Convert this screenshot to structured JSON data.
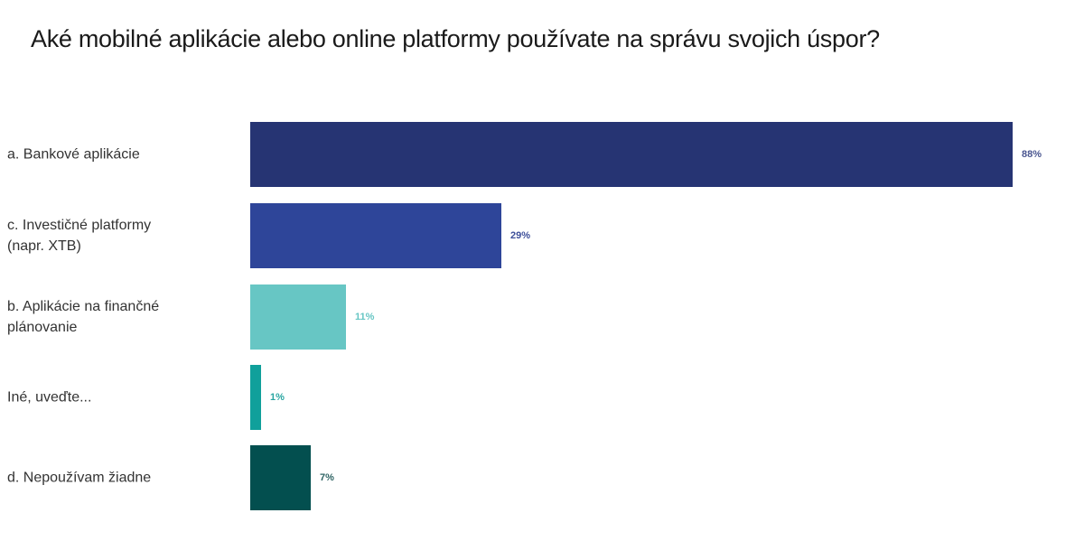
{
  "title": "Aké mobilné aplikácie alebo online platformy používate na správu svojich úspor?",
  "chart_data": {
    "type": "bar",
    "orientation": "horizontal",
    "title": "Aké mobilné aplikácie alebo online platformy používate na správu svojich úspor?",
    "categories": [
      "a. Bankové aplikácie",
      "c. Investičné platformy (napr. XTB)",
      "b. Aplikácie na finančné plánovanie",
      "Iné, uveďte...",
      "d. Nepoužívam žiadne"
    ],
    "values": [
      88,
      29,
      11,
      1,
      7
    ],
    "value_labels": [
      "88%",
      "29%",
      "11%",
      "1%",
      "7%"
    ],
    "colors": [
      "#263473",
      "#2e4599",
      "#67c6c4",
      "#10a09b",
      "#034f4f"
    ],
    "xlabel": "",
    "ylabel": "",
    "xlim": [
      0,
      88
    ],
    "grid": false,
    "legend": false
  },
  "rows": [
    {
      "label": "a. Bankové aplikácie",
      "value": 88,
      "value_label": "88%",
      "color": "#263473",
      "label_color": "#4a5690"
    },
    {
      "label": "c. Investičné platformy\n(napr. XTB)",
      "value": 29,
      "value_label": "29%",
      "color": "#2e4599",
      "label_color": "#3d4f9a"
    },
    {
      "label": "b. Aplikácie na finančné\nplánovanie",
      "value": 11,
      "value_label": "11%",
      "color": "#67c6c4",
      "label_color": "#67c6c4"
    },
    {
      "label": "Iné, uveďte...",
      "value": 1,
      "value_label": "1%",
      "color": "#10a09b",
      "label_color": "#2aa6a2"
    },
    {
      "label": "d. Nepoužívam žiadne",
      "value": 7,
      "value_label": "7%",
      "color": "#034f4f",
      "label_color": "#2f6464"
    }
  ]
}
